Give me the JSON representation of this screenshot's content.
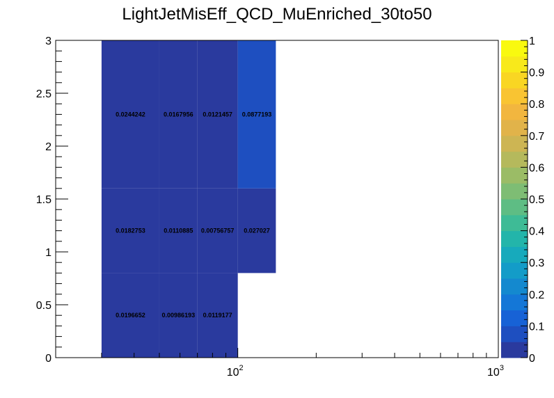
{
  "chart_data": {
    "type": "heatmap",
    "title": "LightJetMisEff_QCD_MuEnriched_30to50",
    "x_scale": "log",
    "xlim": [
      20,
      1000
    ],
    "ylim": [
      0,
      3
    ],
    "x_tick_labels": [
      {
        "base": "10",
        "exp": "2",
        "value": 100
      },
      {
        "base": "10",
        "exp": "3",
        "value": 1000
      }
    ],
    "y_tick_labels": [
      "0",
      "0.5",
      "1",
      "1.5",
      "2",
      "2.5",
      "3"
    ],
    "y_tick_values": [
      0,
      0.5,
      1,
      1.5,
      2,
      2.5,
      3
    ],
    "x_bin_edges": [
      30,
      50,
      70,
      100,
      140
    ],
    "y_bin_edges": [
      0,
      0.8,
      1.6,
      3.0
    ],
    "cells": [
      {
        "xi": 0,
        "yi": 0,
        "value": 0.0196652,
        "label": "0.0196652"
      },
      {
        "xi": 1,
        "yi": 0,
        "value": 0.00986193,
        "label": "0.00986193"
      },
      {
        "xi": 2,
        "yi": 0,
        "value": 0.0119177,
        "label": "0.0119177"
      },
      {
        "xi": 0,
        "yi": 1,
        "value": 0.0182753,
        "label": "0.0182753"
      },
      {
        "xi": 1,
        "yi": 1,
        "value": 0.0110885,
        "label": "0.0110885"
      },
      {
        "xi": 2,
        "yi": 1,
        "value": 0.00756757,
        "label": "0.00756757"
      },
      {
        "xi": 3,
        "yi": 1,
        "value": 0.027027,
        "label": "0.027027"
      },
      {
        "xi": 0,
        "yi": 2,
        "value": 0.0244242,
        "label": "0.0244242"
      },
      {
        "xi": 1,
        "yi": 2,
        "value": 0.0167956,
        "label": "0.0167956"
      },
      {
        "xi": 2,
        "yi": 2,
        "value": 0.0121457,
        "label": "0.0121457"
      },
      {
        "xi": 3,
        "yi": 2,
        "value": 0.0877193,
        "label": "0.0877193"
      }
    ],
    "zlim": [
      0,
      1
    ],
    "z_tick_labels": [
      "0",
      "0.1",
      "0.2",
      "0.3",
      "0.4",
      "0.5",
      "0.6",
      "0.7",
      "0.8",
      "0.9",
      "1"
    ],
    "z_tick_values": [
      0,
      0.1,
      0.2,
      0.3,
      0.4,
      0.5,
      0.6,
      0.7,
      0.8,
      0.9,
      1
    ],
    "palette_colors": [
      "#2a3a9e",
      "#1e4fc0",
      "#1762d6",
      "#1477d7",
      "#1489cf",
      "#139cc8",
      "#17aabc",
      "#23b5aa",
      "#3ebb96",
      "#5ebd84",
      "#7ebd74",
      "#9bbc66",
      "#b5b95c",
      "#cdb553",
      "#e1b34a",
      "#f2b63f",
      "#f9c432",
      "#f9d623",
      "#f8e91b",
      "#f9f90f"
    ],
    "grid": false,
    "legend": "right color scale"
  }
}
